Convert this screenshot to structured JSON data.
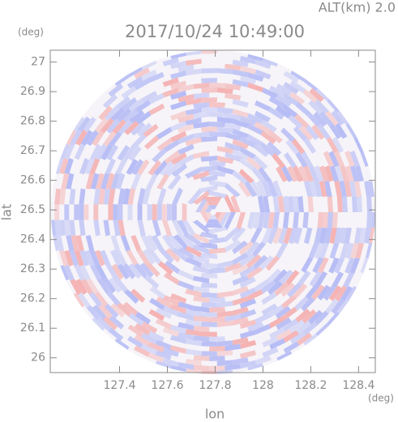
{
  "chart_data": {
    "type": "radar-ppi",
    "title": "2017/10/24 10:49:00",
    "altitude_label": "ALT(km) 2.0",
    "x_label": "lon",
    "y_label": "lat",
    "x_unit": "(deg)",
    "y_unit": "(deg)",
    "xlim": [
      127.11,
      128.47
    ],
    "ylim": [
      25.95,
      27.04
    ],
    "xticks": [
      127.4,
      127.6,
      127.8,
      128.0,
      128.2,
      128.4
    ],
    "yticks": [
      26.0,
      26.1,
      26.2,
      26.3,
      26.4,
      26.5,
      26.6,
      26.7,
      26.8,
      26.9,
      27.0
    ],
    "colors": [
      "#f4a6a6",
      "#aab2f4"
    ]
  }
}
